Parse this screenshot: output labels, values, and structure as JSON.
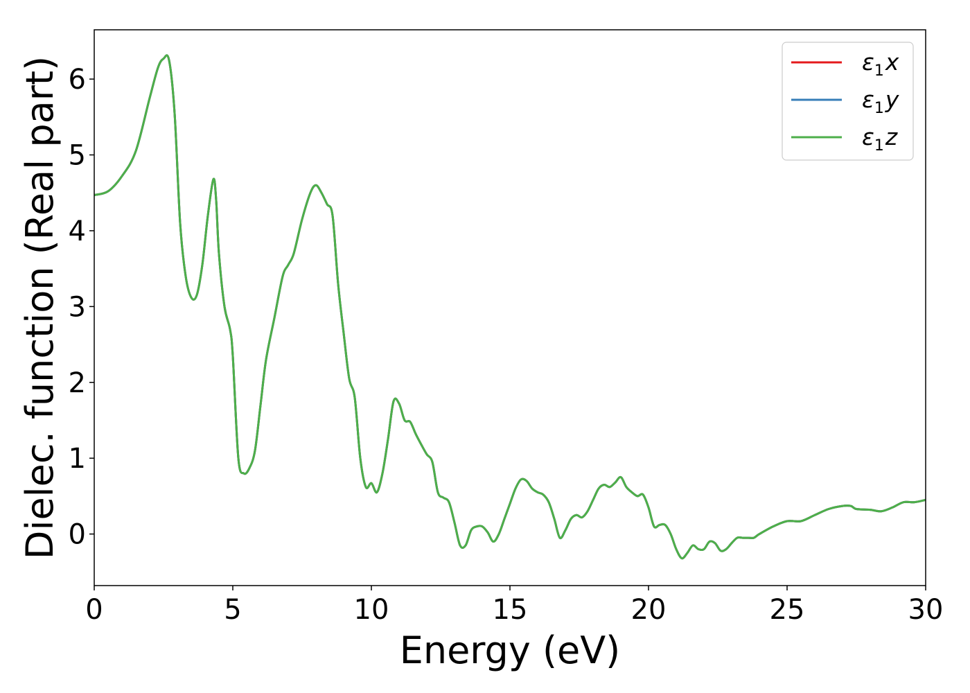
{
  "chart_data": {
    "type": "line",
    "xlabel": "Energy (eV)",
    "ylabel": "Dielec. function (Real part)",
    "xlim": [
      0,
      30
    ],
    "ylim": [
      -0.68,
      6.65
    ],
    "xticks": [
      0,
      5,
      10,
      15,
      20,
      25,
      30
    ],
    "xtick_labels": [
      "0",
      "5",
      "10",
      "15",
      "20",
      "25",
      "30"
    ],
    "yticks": [
      0,
      1,
      2,
      3,
      4,
      5,
      6
    ],
    "ytick_labels": [
      "0",
      "1",
      "2",
      "3",
      "4",
      "5",
      "6"
    ],
    "grid": false,
    "legend_position": "top-right",
    "x": [
      0,
      0.5,
      1.0,
      1.5,
      2.0,
      2.3,
      2.5,
      2.7,
      2.9,
      3.1,
      3.3,
      3.5,
      3.7,
      3.9,
      4.1,
      4.3,
      4.4,
      4.5,
      4.7,
      4.9,
      5.0,
      5.2,
      5.4,
      5.6,
      5.8,
      6.0,
      6.2,
      6.5,
      6.8,
      7.0,
      7.2,
      7.5,
      7.8,
      8.0,
      8.2,
      8.4,
      8.6,
      8.8,
      9.0,
      9.2,
      9.4,
      9.6,
      9.8,
      10.0,
      10.2,
      10.4,
      10.6,
      10.8,
      11.0,
      11.2,
      11.4,
      11.6,
      11.8,
      12.0,
      12.2,
      12.4,
      12.6,
      12.8,
      13.0,
      13.2,
      13.4,
      13.6,
      13.8,
      14.0,
      14.2,
      14.4,
      14.6,
      14.8,
      15.0,
      15.2,
      15.4,
      15.6,
      15.8,
      16.0,
      16.2,
      16.4,
      16.6,
      16.8,
      17.0,
      17.2,
      17.4,
      17.6,
      17.8,
      18.0,
      18.2,
      18.4,
      18.6,
      18.8,
      19.0,
      19.2,
      19.4,
      19.6,
      19.8,
      20.0,
      20.2,
      20.4,
      20.6,
      20.8,
      21.0,
      21.2,
      21.4,
      21.6,
      21.8,
      22.0,
      22.2,
      22.4,
      22.6,
      22.8,
      23.0,
      23.2,
      23.4,
      23.6,
      23.8,
      24.0,
      24.5,
      25.0,
      25.5,
      26.0,
      26.5,
      27.0,
      27.3,
      27.5,
      28.0,
      28.4,
      28.8,
      29.2,
      29.6,
      30.0
    ],
    "series": [
      {
        "name": "ε1x",
        "label_main": "ε",
        "label_sub": "1",
        "label_var": "x",
        "color": "#e41a1c",
        "values": [
          4.47,
          4.52,
          4.72,
          5.05,
          5.75,
          6.15,
          6.27,
          6.25,
          5.55,
          4.1,
          3.4,
          3.12,
          3.15,
          3.55,
          4.2,
          4.68,
          4.4,
          3.7,
          3.0,
          2.7,
          2.35,
          1.0,
          0.8,
          0.87,
          1.1,
          1.7,
          2.3,
          2.85,
          3.4,
          3.55,
          3.7,
          4.15,
          4.5,
          4.6,
          4.5,
          4.35,
          4.2,
          3.3,
          2.65,
          2.05,
          1.8,
          1.0,
          0.62,
          0.67,
          0.55,
          0.8,
          1.25,
          1.75,
          1.72,
          1.5,
          1.48,
          1.32,
          1.18,
          1.05,
          0.95,
          0.55,
          0.48,
          0.42,
          0.15,
          -0.15,
          -0.15,
          0.05,
          0.1,
          0.1,
          0.02,
          -0.1,
          0.0,
          0.2,
          0.4,
          0.6,
          0.72,
          0.7,
          0.6,
          0.55,
          0.52,
          0.42,
          0.2,
          -0.05,
          0.05,
          0.2,
          0.25,
          0.22,
          0.3,
          0.45,
          0.6,
          0.65,
          0.62,
          0.68,
          0.75,
          0.62,
          0.55,
          0.5,
          0.52,
          0.35,
          0.1,
          0.12,
          0.12,
          0.0,
          -0.2,
          -0.32,
          -0.25,
          -0.15,
          -0.2,
          -0.2,
          -0.1,
          -0.12,
          -0.22,
          -0.2,
          -0.12,
          -0.05,
          -0.05,
          -0.05,
          -0.05,
          0.0,
          0.1,
          0.17,
          0.17,
          0.25,
          0.33,
          0.37,
          0.37,
          0.33,
          0.32,
          0.3,
          0.35,
          0.42,
          0.42,
          0.45
        ]
      },
      {
        "name": "ε1y",
        "label_main": "ε",
        "label_sub": "1",
        "label_var": "y",
        "color": "#377eb8",
        "values": [
          4.47,
          4.52,
          4.72,
          5.05,
          5.75,
          6.15,
          6.27,
          6.25,
          5.55,
          4.1,
          3.4,
          3.12,
          3.15,
          3.55,
          4.2,
          4.68,
          4.4,
          3.7,
          3.0,
          2.7,
          2.35,
          1.0,
          0.8,
          0.87,
          1.1,
          1.7,
          2.3,
          2.85,
          3.4,
          3.55,
          3.7,
          4.15,
          4.5,
          4.6,
          4.5,
          4.35,
          4.2,
          3.3,
          2.65,
          2.05,
          1.8,
          1.0,
          0.62,
          0.67,
          0.55,
          0.8,
          1.25,
          1.75,
          1.72,
          1.5,
          1.48,
          1.32,
          1.18,
          1.05,
          0.95,
          0.55,
          0.48,
          0.42,
          0.15,
          -0.15,
          -0.15,
          0.05,
          0.1,
          0.1,
          0.02,
          -0.1,
          0.0,
          0.2,
          0.4,
          0.6,
          0.72,
          0.7,
          0.6,
          0.55,
          0.52,
          0.42,
          0.2,
          -0.05,
          0.05,
          0.2,
          0.25,
          0.22,
          0.3,
          0.45,
          0.6,
          0.65,
          0.62,
          0.68,
          0.75,
          0.62,
          0.55,
          0.5,
          0.52,
          0.35,
          0.1,
          0.12,
          0.12,
          0.0,
          -0.2,
          -0.32,
          -0.25,
          -0.15,
          -0.2,
          -0.2,
          -0.1,
          -0.12,
          -0.22,
          -0.2,
          -0.12,
          -0.05,
          -0.05,
          -0.05,
          -0.05,
          0.0,
          0.1,
          0.17,
          0.17,
          0.25,
          0.33,
          0.37,
          0.37,
          0.33,
          0.32,
          0.3,
          0.35,
          0.42,
          0.42,
          0.45
        ]
      },
      {
        "name": "ε1z",
        "label_main": "ε",
        "label_sub": "1",
        "label_var": "z",
        "color": "#4daf4a",
        "values": [
          4.47,
          4.52,
          4.72,
          5.05,
          5.75,
          6.15,
          6.27,
          6.25,
          5.55,
          4.1,
          3.4,
          3.12,
          3.15,
          3.55,
          4.2,
          4.68,
          4.4,
          3.7,
          3.0,
          2.7,
          2.35,
          1.0,
          0.8,
          0.87,
          1.1,
          1.7,
          2.3,
          2.85,
          3.4,
          3.55,
          3.7,
          4.15,
          4.5,
          4.6,
          4.5,
          4.35,
          4.2,
          3.3,
          2.65,
          2.05,
          1.8,
          1.0,
          0.62,
          0.67,
          0.55,
          0.8,
          1.25,
          1.75,
          1.72,
          1.5,
          1.48,
          1.32,
          1.18,
          1.05,
          0.95,
          0.55,
          0.48,
          0.42,
          0.15,
          -0.15,
          -0.15,
          0.05,
          0.1,
          0.1,
          0.02,
          -0.1,
          0.0,
          0.2,
          0.4,
          0.6,
          0.72,
          0.7,
          0.6,
          0.55,
          0.52,
          0.42,
          0.2,
          -0.05,
          0.05,
          0.2,
          0.25,
          0.22,
          0.3,
          0.45,
          0.6,
          0.65,
          0.62,
          0.68,
          0.75,
          0.62,
          0.55,
          0.5,
          0.52,
          0.35,
          0.1,
          0.12,
          0.12,
          0.0,
          -0.2,
          -0.32,
          -0.25,
          -0.15,
          -0.2,
          -0.2,
          -0.1,
          -0.12,
          -0.22,
          -0.2,
          -0.12,
          -0.05,
          -0.05,
          -0.05,
          -0.05,
          0.0,
          0.1,
          0.17,
          0.17,
          0.25,
          0.33,
          0.37,
          0.37,
          0.33,
          0.32,
          0.3,
          0.35,
          0.42,
          0.42,
          0.45
        ]
      }
    ]
  }
}
